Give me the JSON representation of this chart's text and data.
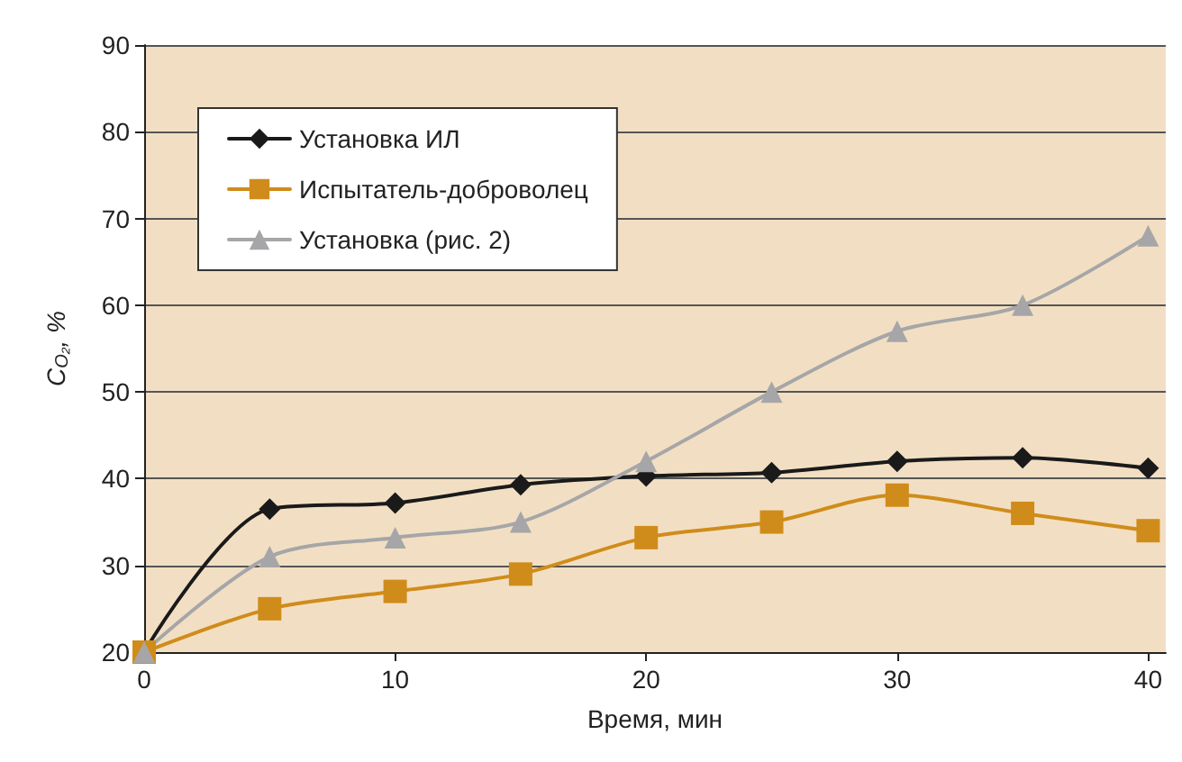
{
  "chart_data": {
    "type": "line",
    "xlabel": "Время, мин",
    "ylabel": "C$_{O₂}$, %",
    "x": [
      0,
      5,
      10,
      15,
      20,
      25,
      30,
      35,
      40
    ],
    "xlim": [
      0,
      40.7
    ],
    "xticks": [
      0,
      10,
      20,
      30,
      40
    ],
    "ylim": [
      20,
      90
    ],
    "yticks": [
      20,
      30,
      40,
      50,
      60,
      70,
      80,
      90
    ],
    "grid": "y",
    "legend": "top left",
    "series": [
      {
        "name": "Установка ИЛ",
        "color": "#1a1a1a",
        "marker": "diamond",
        "values": [
          20,
          36.5,
          37.2,
          39.3,
          40.3,
          40.7,
          42,
          42.4,
          41.2
        ]
      },
      {
        "name": "Испытатель-доброволец",
        "color": "#d08c1a",
        "marker": "square",
        "values": [
          20,
          25,
          27,
          29,
          33.2,
          35,
          38.1,
          36,
          34
        ]
      },
      {
        "name": "Установка (рис. 2)",
        "color": "#a6a6a8",
        "marker": "triangle",
        "values": [
          20,
          31,
          33.2,
          35,
          42,
          50,
          57,
          60,
          68
        ]
      }
    ]
  }
}
